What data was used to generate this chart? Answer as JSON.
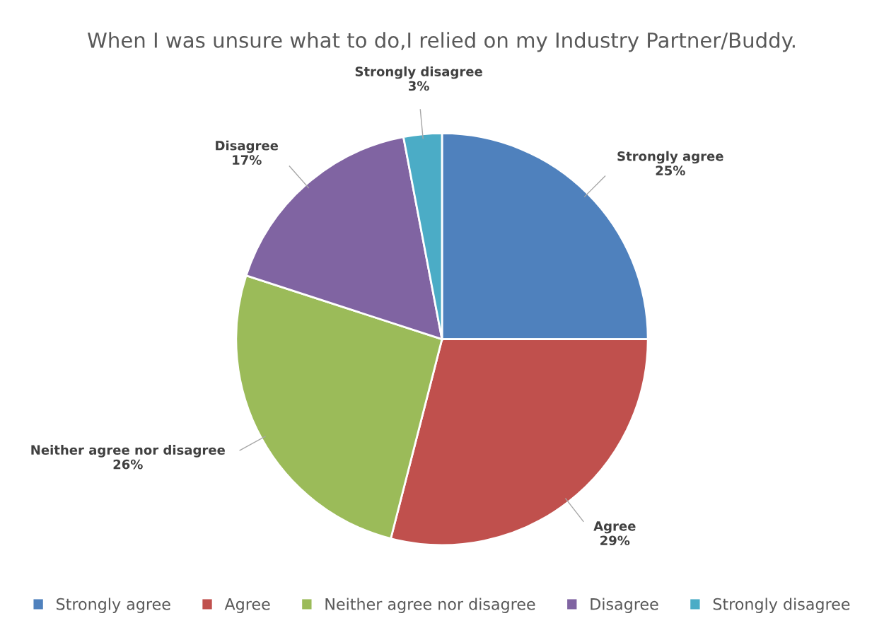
{
  "chart_data": {
    "type": "pie",
    "title": "When I was unsure what to do,I relied on my Industry Partner/Buddy.",
    "categories": [
      "Strongly agree",
      "Agree",
      "Neither agree nor disagree",
      "Disagree",
      "Strongly disagree"
    ],
    "values": [
      25,
      29,
      26,
      17,
      3
    ],
    "colors": [
      "#4f81bd",
      "#c0504d",
      "#9bbb59",
      "#8064a2",
      "#4bacc6"
    ],
    "value_labels": [
      "25%",
      "29%",
      "26%",
      "17%",
      "3%"
    ],
    "legend": "bottom"
  }
}
